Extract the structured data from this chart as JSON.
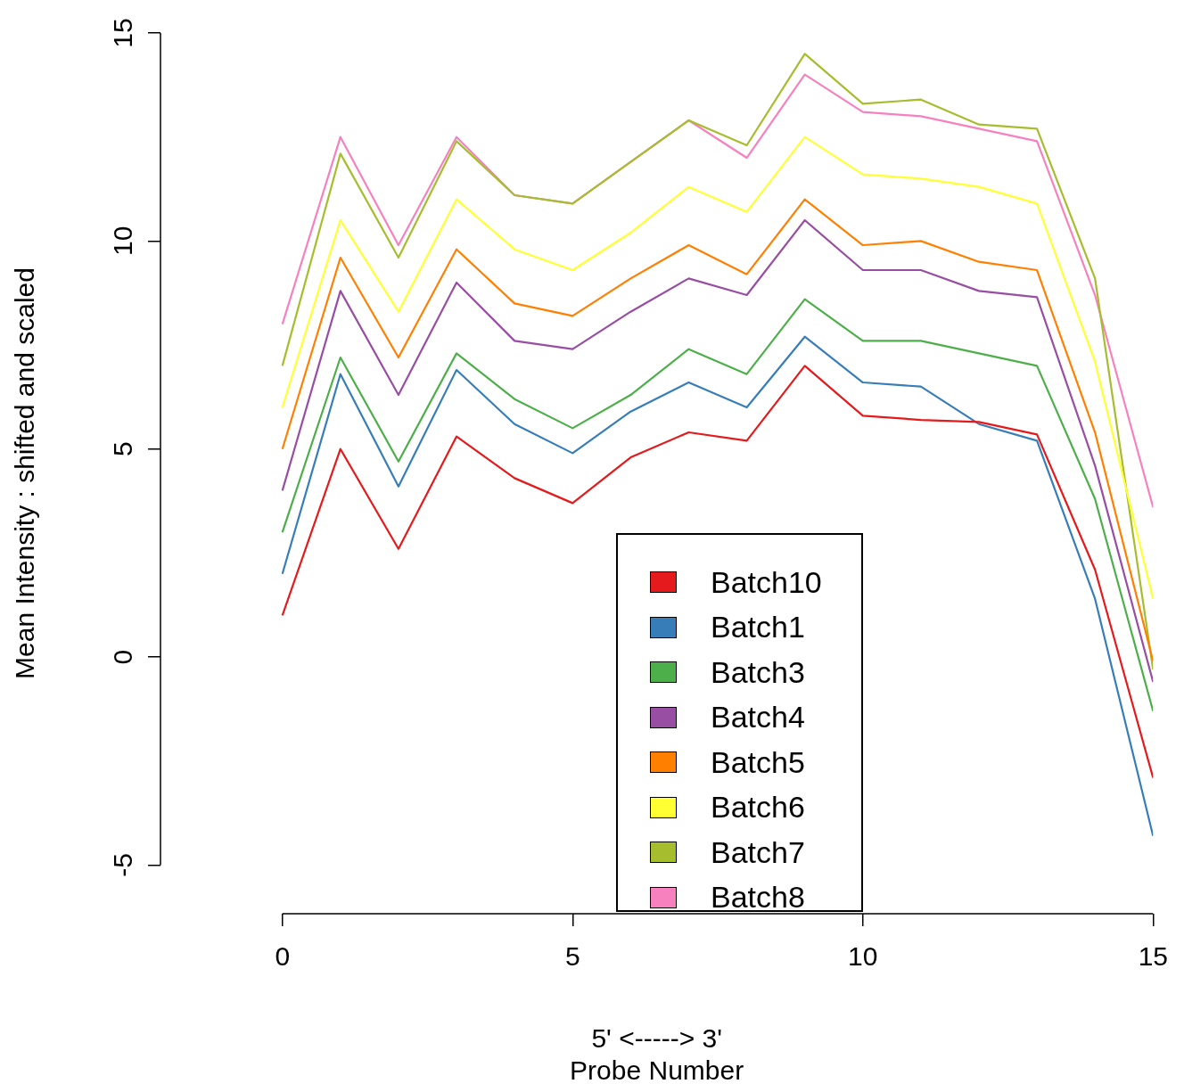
{
  "chart_data": {
    "type": "line",
    "xlabel": "5' <-----> 3'\nProbe Number",
    "ylabel": "Mean Intensity : shifted and scaled",
    "x": [
      0,
      1,
      2,
      3,
      4,
      5,
      6,
      7,
      8,
      9,
      10,
      11,
      12,
      13,
      14,
      15
    ],
    "series": [
      {
        "name": "Batch10",
        "color": "#e41a1c",
        "values": [
          1.0,
          5.0,
          2.6,
          5.3,
          4.3,
          3.7,
          4.8,
          5.4,
          5.2,
          7.0,
          5.8,
          5.7,
          5.65,
          5.35,
          2.1,
          -2.9
        ]
      },
      {
        "name": "Batch1",
        "color": "#377eb8",
        "values": [
          2.0,
          6.8,
          4.1,
          6.9,
          5.6,
          4.9,
          5.9,
          6.6,
          6.0,
          7.7,
          6.6,
          6.5,
          5.6,
          5.2,
          1.4,
          -4.3
        ]
      },
      {
        "name": "Batch3",
        "color": "#4daf4a",
        "values": [
          3.0,
          7.2,
          4.7,
          7.3,
          6.2,
          5.5,
          6.3,
          7.4,
          6.8,
          8.6,
          7.6,
          7.6,
          7.3,
          7.0,
          3.8,
          -1.3
        ]
      },
      {
        "name": "Batch4",
        "color": "#984ea3",
        "values": [
          4.0,
          8.8,
          6.3,
          9.0,
          7.6,
          7.4,
          8.3,
          9.1,
          8.7,
          10.5,
          9.3,
          9.3,
          8.8,
          8.65,
          4.6,
          -0.6
        ]
      },
      {
        "name": "Batch5",
        "color": "#ff7f00",
        "values": [
          5.0,
          9.6,
          7.2,
          9.8,
          8.5,
          8.2,
          9.1,
          9.9,
          9.2,
          11.0,
          9.9,
          10.0,
          9.5,
          9.3,
          5.4,
          -0.1
        ]
      },
      {
        "name": "Batch6",
        "color": "#ffff33",
        "values": [
          6.0,
          10.5,
          8.3,
          11.0,
          9.8,
          9.3,
          10.2,
          11.3,
          10.7,
          12.5,
          11.6,
          11.5,
          11.3,
          10.9,
          7.1,
          1.4
        ]
      },
      {
        "name": "Batch7",
        "color": "#a6bd2e",
        "values": [
          7.0,
          12.1,
          9.6,
          12.4,
          11.1,
          10.9,
          11.9,
          12.9,
          12.3,
          14.5,
          13.3,
          13.4,
          12.8,
          12.7,
          9.1,
          -0.3
        ]
      },
      {
        "name": "Batch8",
        "color": "#f781bf",
        "values": [
          8.0,
          12.5,
          9.9,
          12.5,
          11.1,
          10.9,
          11.9,
          12.9,
          12.0,
          14.0,
          13.1,
          13.0,
          12.7,
          12.4,
          8.7,
          3.6
        ]
      }
    ],
    "xlim": [
      -2.1,
      15
    ],
    "xticks": [
      0,
      5,
      10,
      15
    ],
    "ylim": [
      -6.17,
      15
    ],
    "yticks": [
      -5,
      0,
      5,
      10,
      15
    ],
    "grid": false,
    "legend": "bottom",
    "marker": "none",
    "line_style": "solid"
  }
}
